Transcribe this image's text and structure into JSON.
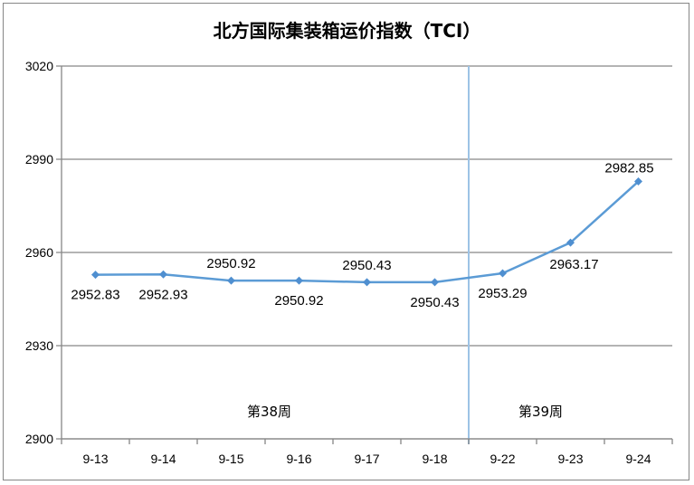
{
  "chart_data": {
    "type": "line",
    "title": "北方国际集装箱运价指数（TCI）",
    "categories": [
      "9-13",
      "9-14",
      "9-15",
      "9-16",
      "9-17",
      "9-18",
      "9-22",
      "9-23",
      "9-24"
    ],
    "series": [
      {
        "values": [
          2952.83,
          2952.93,
          2950.92,
          2950.92,
          2950.43,
          2950.43,
          2953.29,
          2963.17,
          2982.85
        ],
        "data_labels": [
          "2952.83",
          "2952.93",
          "2950.92",
          "2950.92",
          "2950.43",
          "2950.43",
          "2953.29",
          "2963.17",
          "2982.85"
        ]
      }
    ],
    "ylim": [
      2900,
      3020
    ],
    "yticks": [
      2900,
      2930,
      2960,
      2990,
      3020
    ],
    "grid": true,
    "legend": "none",
    "separator_after_category": "9-18",
    "annotations": [
      {
        "text": "第38周",
        "near_category": "9-16"
      },
      {
        "text": "第39周",
        "near_category": "9-23"
      }
    ],
    "colors": {
      "line": "#5b9bd5",
      "marker": "#4f8fd0",
      "separator": "#9dc3e6",
      "grid": "#868686"
    }
  }
}
